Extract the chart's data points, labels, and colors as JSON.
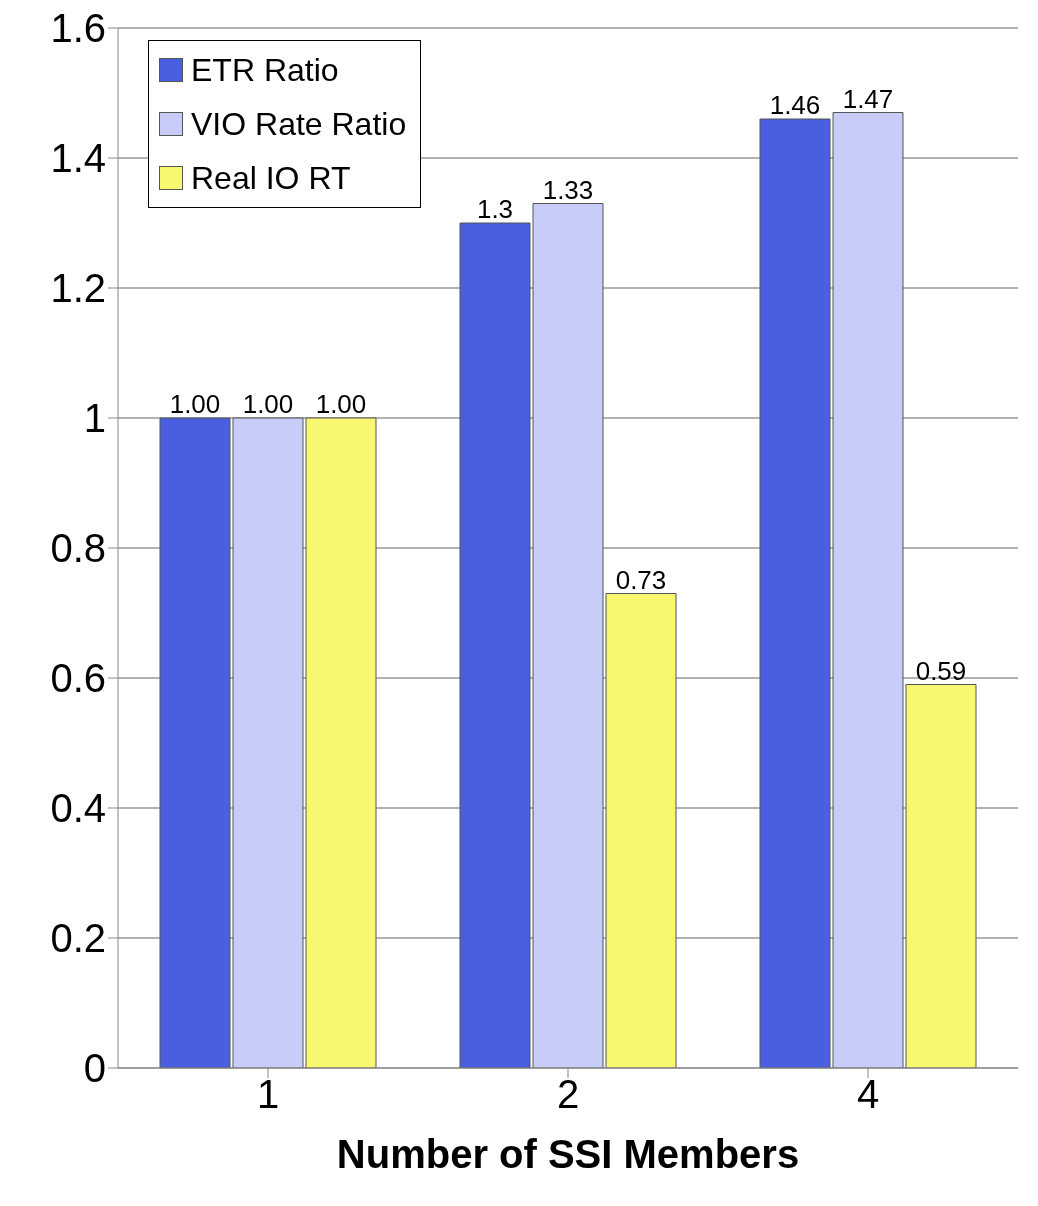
{
  "chart_data": {
    "type": "bar",
    "xlabel": "Number of SSI Members",
    "categories": [
      "1",
      "2",
      "4"
    ],
    "series": [
      {
        "name": "ETR Ratio",
        "color": "#4a5fe0",
        "values": [
          1.0,
          1.3,
          1.46
        ],
        "value_labels": [
          "1.00",
          "1.3",
          "1.46"
        ]
      },
      {
        "name": "VIO Rate Ratio",
        "color": "#c8ccf8",
        "values": [
          1.0,
          1.33,
          1.47
        ],
        "value_labels": [
          "1.00",
          "1.33",
          "1.47"
        ]
      },
      {
        "name": "Real IO RT",
        "color": "#f8f870",
        "values": [
          1.0,
          0.73,
          0.59
        ],
        "value_labels": [
          "1.00",
          "0.73",
          "0.59"
        ]
      }
    ],
    "ylim": [
      0,
      1.6
    ],
    "yticks": [
      0,
      0.2,
      0.4,
      0.6,
      0.8,
      1,
      1.2,
      1.4,
      1.6
    ],
    "grid": "y",
    "legend": "top left"
  }
}
